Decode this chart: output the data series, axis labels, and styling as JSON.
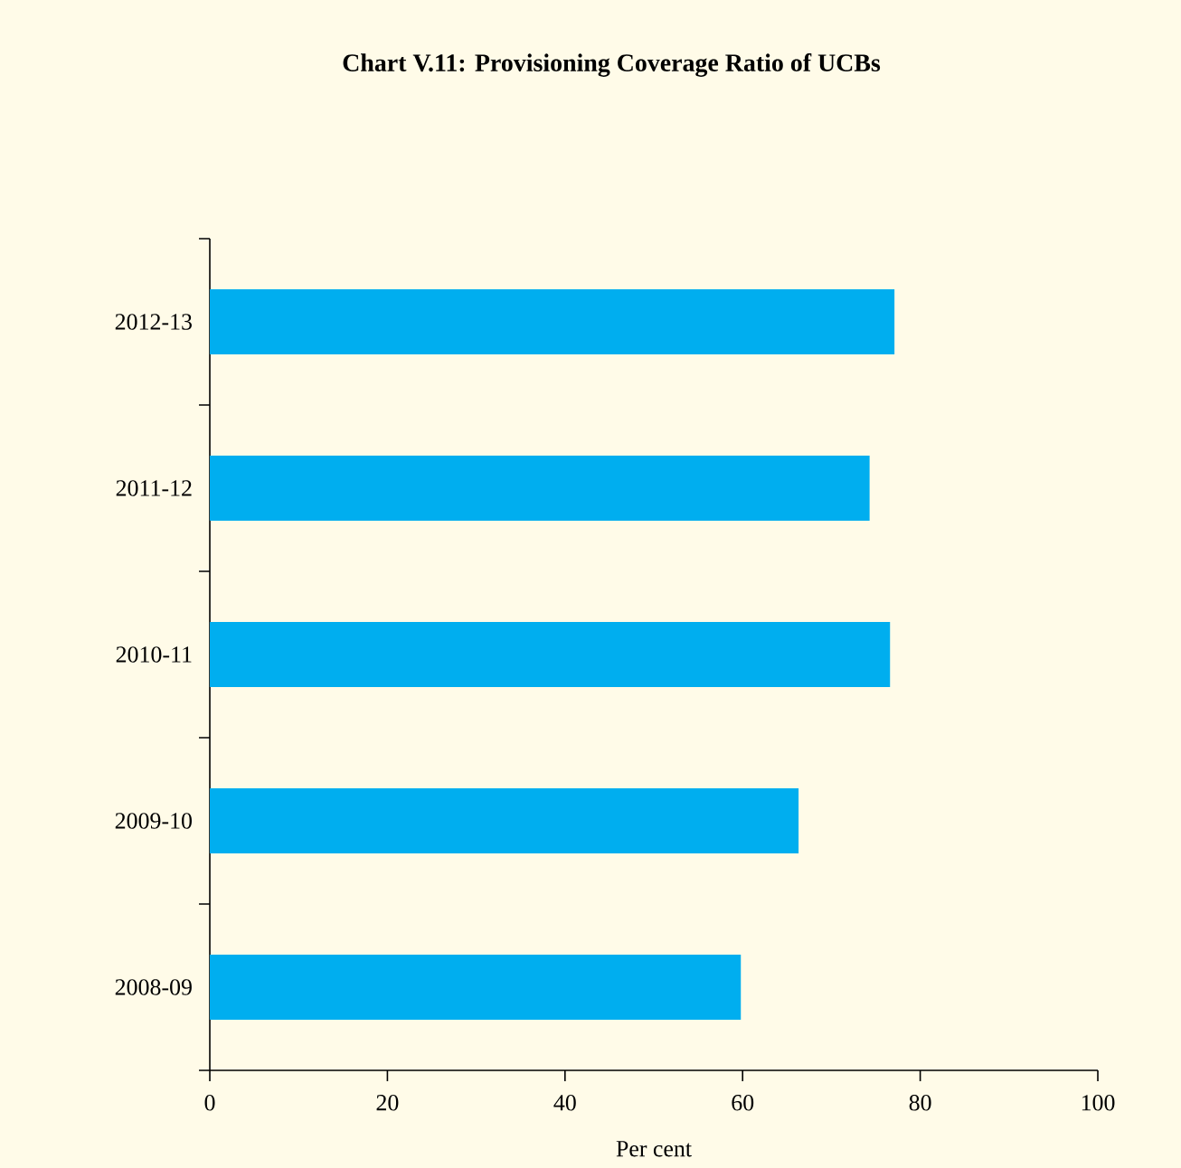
{
  "chart_data": {
    "type": "bar",
    "orientation": "horizontal",
    "title": "Chart V.11: Provisioning Coverage Ratio of UCBs",
    "xlabel": "Per cent",
    "categories": [
      "2012-13",
      "2011-12",
      "2010-11",
      "2009-10",
      "2008-09"
    ],
    "values": [
      77.1,
      74.3,
      76.6,
      66.3,
      59.8
    ],
    "color": "#00aeef",
    "xlim": [
      0,
      100
    ],
    "xticks": [
      0,
      20,
      40,
      60,
      80,
      100
    ],
    "grid": false
  }
}
